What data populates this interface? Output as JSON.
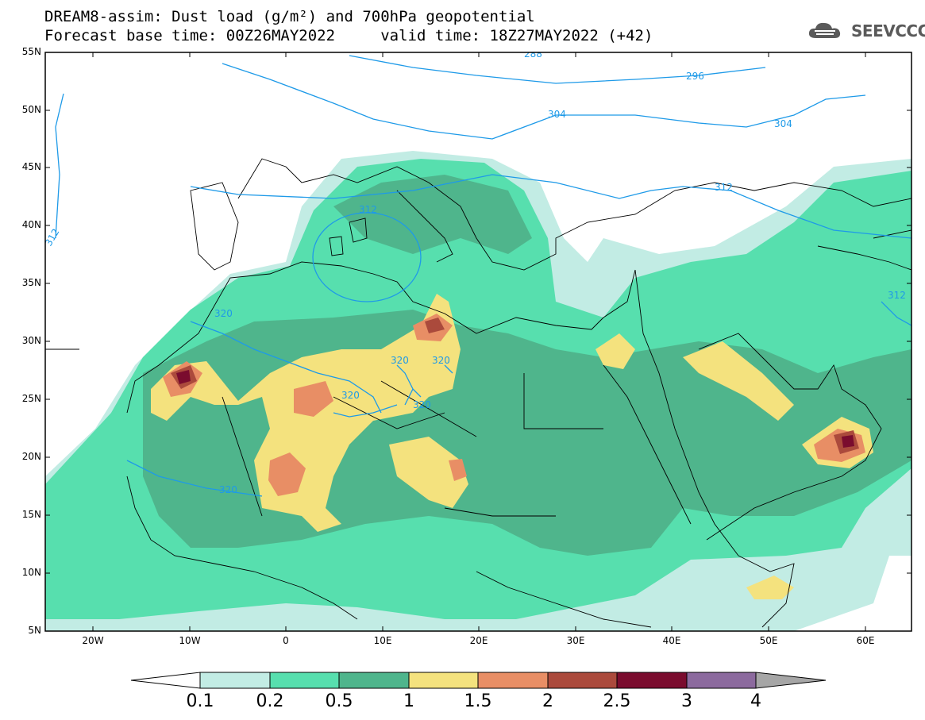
{
  "header": {
    "title_line1": "DREAM8-assim: Dust load (g/m²) and 700hPa geopotential",
    "title_line2": "Forecast base time: 00Z26MAY2022     valid time: 18Z27MAY2022 (+42)"
  },
  "logo": {
    "text": "SEEVCCC",
    "icon": "cloud-logo-icon"
  },
  "map": {
    "lat_labels": [
      "55N",
      "50N",
      "45N",
      "40N",
      "35N",
      "30N",
      "25N",
      "20N",
      "15N",
      "10N",
      "5N"
    ],
    "lon_labels": [
      "20W",
      "10W",
      "0",
      "10E",
      "20E",
      "30E",
      "40E",
      "50E",
      "60E"
    ],
    "contour_labels": [
      "288",
      "296",
      "304",
      "304",
      "312",
      "312",
      "312",
      "312",
      "320",
      "320",
      "320",
      "320",
      "320",
      "320"
    ]
  },
  "colorbar": {
    "labels": [
      "0.1",
      "0.2",
      "0.5",
      "1",
      "1.5",
      "2",
      "2.5",
      "3",
      "4"
    ],
    "colors": [
      "#ffffff",
      "#c2ece4",
      "#57dfae",
      "#4fb58c",
      "#f4e27e",
      "#e88e65",
      "#ab4a3c",
      "#7a0c2e",
      "#8c6a9e",
      "#a6a6a6"
    ]
  }
}
